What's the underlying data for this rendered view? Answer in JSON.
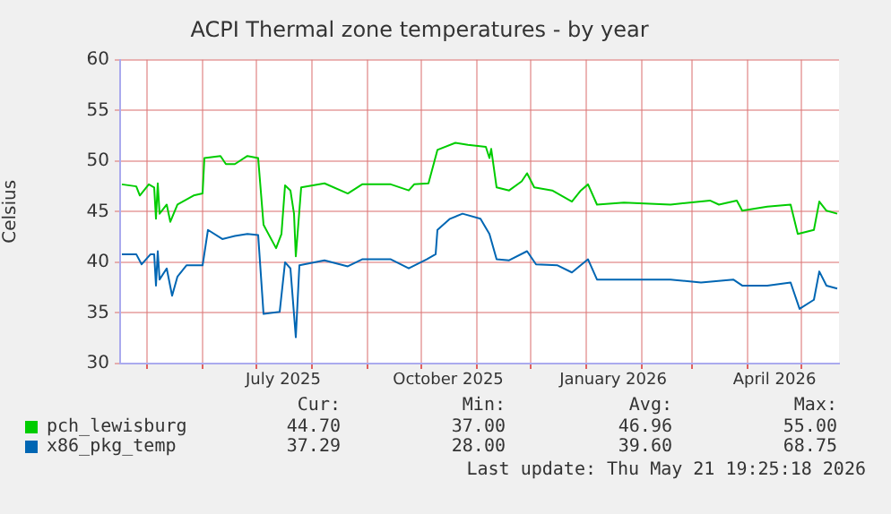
{
  "chart_data": {
    "type": "line",
    "title": "ACPI Thermal zone temperatures - by year",
    "ylabel": "Celsius",
    "xlim": [
      "2025-04-16",
      "2026-05-22"
    ],
    "xticks": [
      {
        "value": "2025-05-01",
        "label": null
      },
      {
        "value": "2025-06-01",
        "label": null
      },
      {
        "value": "2025-07-01",
        "label": null
      },
      {
        "value": "2025-07-16",
        "label": "July 2025"
      },
      {
        "value": "2025-08-01",
        "label": null
      },
      {
        "value": "2025-09-01",
        "label": null
      },
      {
        "value": "2025-10-01",
        "label": null
      },
      {
        "value": "2025-10-16",
        "label": "October 2025"
      },
      {
        "value": "2025-11-01",
        "label": null
      },
      {
        "value": "2025-12-01",
        "label": null
      },
      {
        "value": "2026-01-01",
        "label": null
      },
      {
        "value": "2026-01-16",
        "label": "January 2026"
      },
      {
        "value": "2026-02-01",
        "label": null
      },
      {
        "value": "2026-03-01",
        "label": null
      },
      {
        "value": "2026-04-01",
        "label": null
      },
      {
        "value": "2026-04-16",
        "label": "April 2026"
      },
      {
        "value": "2026-05-01",
        "label": null
      }
    ],
    "ylim": [
      30,
      60
    ],
    "yticks": [
      30,
      35,
      40,
      45,
      50,
      55,
      60
    ],
    "grid": true,
    "legend": "bottom",
    "marker": "none",
    "line_style": "solid",
    "series": [
      {
        "name": "pch_lewisburg",
        "color": "#00cc00",
        "x": [
          "2025-04-17",
          "2025-04-25",
          "2025-04-27",
          "2025-05-02",
          "2025-05-05",
          "2025-05-06",
          "2025-05-07",
          "2025-05-08",
          "2025-05-12",
          "2025-05-14",
          "2025-05-18",
          "2025-05-27",
          "2025-06-01",
          "2025-06-02",
          "2025-06-11",
          "2025-06-14",
          "2025-06-19",
          "2025-06-26",
          "2025-07-02",
          "2025-07-05",
          "2025-07-12",
          "2025-07-15",
          "2025-07-17",
          "2025-07-20",
          "2025-07-22",
          "2025-07-23",
          "2025-07-26",
          "2025-08-08",
          "2025-08-21",
          "2025-08-29",
          "2025-09-14",
          "2025-09-24",
          "2025-09-27",
          "2025-10-05",
          "2025-10-10",
          "2025-10-20",
          "2025-10-27",
          "2025-11-06",
          "2025-11-08",
          "2025-11-09",
          "2025-11-12",
          "2025-11-19",
          "2025-11-26",
          "2025-11-29",
          "2025-12-03",
          "2025-12-13",
          "2025-12-24",
          "2025-12-29",
          "2026-01-02",
          "2026-01-07",
          "2026-01-22",
          "2026-02-17",
          "2026-03-11",
          "2026-03-16",
          "2026-03-26",
          "2026-03-29",
          "2026-04-12",
          "2026-04-25",
          "2026-04-29",
          "2026-05-08",
          "2026-05-11",
          "2026-05-15",
          "2026-05-21"
        ],
        "values": [
          47.7,
          47.5,
          46.6,
          47.7,
          47.4,
          44.3,
          47.8,
          44.8,
          45.7,
          44.0,
          45.7,
          46.6,
          46.8,
          50.3,
          50.5,
          49.7,
          49.7,
          50.5,
          50.3,
          43.7,
          41.4,
          42.8,
          47.6,
          47.1,
          44.8,
          40.6,
          47.4,
          47.8,
          46.8,
          47.7,
          47.7,
          47.1,
          47.7,
          47.8,
          51.1,
          51.8,
          51.6,
          51.4,
          50.3,
          51.2,
          47.4,
          47.1,
          48.0,
          48.8,
          47.4,
          47.1,
          46.0,
          47.1,
          47.7,
          45.7,
          45.9,
          45.7,
          46.1,
          45.7,
          46.1,
          45.1,
          45.5,
          45.7,
          42.8,
          43.2,
          46.0,
          45.1,
          44.8
        ]
      },
      {
        "name": "x86_pkg_temp",
        "color": "#0066b3",
        "x": [
          "2025-04-17",
          "2025-04-25",
          "2025-04-28",
          "2025-05-03",
          "2025-05-05",
          "2025-05-06",
          "2025-05-07",
          "2025-05-08",
          "2025-05-12",
          "2025-05-15",
          "2025-05-18",
          "2025-05-23",
          "2025-06-01",
          "2025-06-04",
          "2025-06-12",
          "2025-06-19",
          "2025-06-26",
          "2025-07-02",
          "2025-07-05",
          "2025-07-14",
          "2025-07-17",
          "2025-07-20",
          "2025-07-23",
          "2025-07-25",
          "2025-08-08",
          "2025-08-21",
          "2025-08-29",
          "2025-09-14",
          "2025-09-24",
          "2025-10-04",
          "2025-10-09",
          "2025-10-10",
          "2025-10-17",
          "2025-10-24",
          "2025-11-03",
          "2025-11-08",
          "2025-11-12",
          "2025-11-19",
          "2025-11-29",
          "2025-12-04",
          "2025-12-16",
          "2025-12-24",
          "2026-01-02",
          "2026-01-07",
          "2026-01-22",
          "2026-02-17",
          "2026-03-06",
          "2026-03-24",
          "2026-03-29",
          "2026-04-12",
          "2026-04-25",
          "2026-04-30",
          "2026-05-08",
          "2026-05-11",
          "2026-05-15",
          "2026-05-21"
        ],
        "values": [
          40.8,
          40.8,
          39.8,
          40.8,
          40.8,
          37.7,
          41.1,
          38.3,
          39.4,
          36.7,
          38.6,
          39.7,
          39.7,
          43.2,
          42.3,
          42.6,
          42.8,
          42.7,
          34.9,
          35.1,
          40.0,
          39.4,
          32.6,
          39.7,
          40.2,
          39.6,
          40.3,
          40.3,
          39.4,
          40.3,
          40.8,
          43.2,
          44.3,
          44.8,
          44.3,
          42.8,
          40.3,
          40.2,
          41.1,
          39.8,
          39.7,
          39.0,
          40.3,
          38.3,
          38.3,
          38.3,
          38.0,
          38.3,
          37.7,
          37.7,
          38.0,
          35.4,
          36.3,
          39.1,
          37.7,
          37.4
        ]
      }
    ],
    "annotations": [
      "Cur:",
      "Min:",
      "Avg:",
      "Max:",
      "44.70",
      "37.00",
      "46.96",
      "55.00",
      "37.29",
      "28.00",
      "39.60",
      "68.75",
      "Last update: Thu May 21 19:25:18 2026"
    ]
  }
}
